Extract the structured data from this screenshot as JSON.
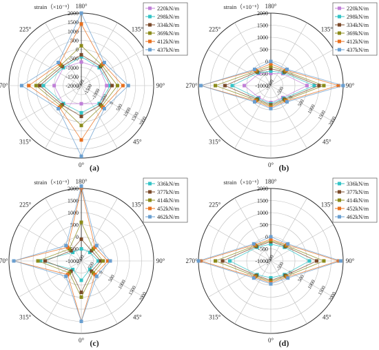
{
  "figure": {
    "panel_labels": [
      "(a)",
      "(b)",
      "(c)",
      "(d)"
    ]
  },
  "chart_data": [
    {
      "type": "radar",
      "panel": "(a)",
      "axis_title": "strain（×10⁻⁶）",
      "radial_ticks": [
        "2000",
        "1500",
        "1000",
        "500",
        "0",
        "-500",
        "-1000",
        "-1500",
        "-2000"
      ],
      "radial_range": [
        -2000,
        2000
      ],
      "angles_deg": [
        0,
        45,
        90,
        135,
        180,
        225,
        270,
        315
      ],
      "angle_labels": [
        "0°",
        "45°",
        "90°",
        "135°",
        "180°",
        "225°",
        "270°",
        "315°"
      ],
      "series": [
        {
          "name": "220kN/m",
          "color": "#c080d8",
          "values": [
            -1000,
            -600,
            -600,
            -600,
            -700,
            -600,
            -500,
            -600
          ]
        },
        {
          "name": "298kN/m",
          "color": "#33c3c6",
          "values": [
            -500,
            -600,
            -400,
            -600,
            -400,
            -600,
            100,
            -600
          ]
        },
        {
          "name": "334kN/m",
          "color": "#7a4a2a",
          "values": [
            -300,
            -500,
            -300,
            -500,
            -300,
            -500,
            300,
            -500
          ]
        },
        {
          "name": "369kN/m",
          "color": "#8b8b1a",
          "values": [
            200,
            -400,
            0,
            -400,
            200,
            -400,
            500,
            -400
          ]
        },
        {
          "name": "412kN/m",
          "color": "#e8701f",
          "values": [
            1000,
            -300,
            300,
            -300,
            1400,
            -300,
            900,
            -300
          ]
        },
        {
          "name": "437kN/m",
          "color": "#6a9fd0",
          "values": [
            1900,
            -200,
            600,
            -200,
            2000,
            -200,
            1300,
            -200
          ]
        }
      ]
    },
    {
      "type": "radar",
      "panel": "(b)",
      "axis_title": "strain（×10⁻⁶）",
      "radial_ticks": [
        "2000",
        "1500",
        "1000",
        "500",
        "0",
        "-500",
        "-1000"
      ],
      "radial_range": [
        -1000,
        2000
      ],
      "angles_deg": [
        0,
        45,
        90,
        135,
        180,
        225,
        270,
        315
      ],
      "angle_labels": [
        "0°",
        "45°",
        "90°",
        "135°",
        "180°",
        "225°",
        "270°",
        "315°"
      ],
      "series": [
        {
          "name": "220kN/m",
          "color": "#c080d8",
          "values": [
            -300,
            -300,
            500,
            -300,
            -500,
            -300,
            100,
            -300
          ]
        },
        {
          "name": "298kN/m",
          "color": "#33c3c6",
          "values": [
            -250,
            -250,
            800,
            -250,
            -400,
            -250,
            600,
            -250
          ]
        },
        {
          "name": "334kN/m",
          "color": "#7a4a2a",
          "values": [
            -200,
            -200,
            1000,
            -200,
            -300,
            -200,
            900,
            -200
          ]
        },
        {
          "name": "369kN/m",
          "color": "#8b8b1a",
          "values": [
            -150,
            -150,
            1200,
            -150,
            -200,
            -150,
            1300,
            -150
          ]
        },
        {
          "name": "412kN/m",
          "color": "#e8701f",
          "values": [
            -100,
            -100,
            1800,
            -100,
            -100,
            -100,
            1900,
            -100
          ]
        },
        {
          "name": "437kN/m",
          "color": "#6a9fd0",
          "values": [
            -50,
            -50,
            2000,
            -50,
            0,
            -50,
            1900,
            -50
          ]
        }
      ]
    },
    {
      "type": "radar",
      "panel": "(c)",
      "axis_title": "strain（×10⁻⁶）",
      "radial_ticks": [
        "2000",
        "1500",
        "1000",
        "500",
        "0",
        "-500",
        "-1000"
      ],
      "radial_range": [
        -1000,
        2000
      ],
      "angles_deg": [
        0,
        45,
        90,
        135,
        180,
        225,
        270,
        315
      ],
      "angle_labels": [
        "0°",
        "45°",
        "90°",
        "135°",
        "180°",
        "225°",
        "270°",
        "315°"
      ],
      "series": [
        {
          "name": "336kN/m",
          "color": "#33c3c6",
          "values": [
            -200,
            -500,
            -300,
            -500,
            -500,
            -500,
            700,
            -500
          ]
        },
        {
          "name": "377kN/m",
          "color": "#7a4a2a",
          "values": [
            300,
            -400,
            -200,
            -400,
            -100,
            -400,
            500,
            -400
          ]
        },
        {
          "name": "414kN/m",
          "color": "#8b8b1a",
          "values": [
            500,
            -300,
            -100,
            -300,
            600,
            -300,
            800,
            -300
          ]
        },
        {
          "name": "452kN/m",
          "color": "#e8701f",
          "values": [
            1500,
            -200,
            100,
            -200,
            2000,
            -200,
            1800,
            -200
          ]
        },
        {
          "name": "462kN/m",
          "color": "#6a9fd0",
          "values": [
            1500,
            -100,
            200,
            -100,
            2100,
            -100,
            1800,
            -100
          ]
        }
      ]
    },
    {
      "type": "radar",
      "panel": "(d)",
      "axis_title": "strain（×10⁻⁶）",
      "radial_ticks": [
        "2000",
        "1500",
        "1000",
        "500",
        "0",
        "-500",
        "-1000"
      ],
      "radial_range": [
        -1000,
        2000
      ],
      "angles_deg": [
        0,
        45,
        90,
        135,
        180,
        225,
        270,
        315
      ],
      "angle_labels": [
        "0°",
        "45°",
        "90°",
        "135°",
        "180°",
        "225°",
        "270°",
        "315°"
      ],
      "series": [
        {
          "name": "336kN/m",
          "color": "#33c3c6",
          "values": [
            -300,
            -200,
            600,
            -200,
            -300,
            -200,
            700,
            -200
          ]
        },
        {
          "name": "377kN/m",
          "color": "#7a4a2a",
          "values": [
            -200,
            -150,
            900,
            -150,
            -200,
            -150,
            1000,
            -150
          ]
        },
        {
          "name": "414kN/m",
          "color": "#8b8b1a",
          "values": [
            -150,
            -100,
            1200,
            -100,
            -150,
            -100,
            1300,
            -100
          ]
        },
        {
          "name": "452kN/m",
          "color": "#e8701f",
          "values": [
            -100,
            -50,
            1800,
            -50,
            -100,
            -50,
            1900,
            -50
          ]
        },
        {
          "name": "462kN/m",
          "color": "#6a9fd0",
          "values": [
            -50,
            0,
            1900,
            0,
            0,
            0,
            2000,
            0
          ]
        }
      ]
    }
  ]
}
